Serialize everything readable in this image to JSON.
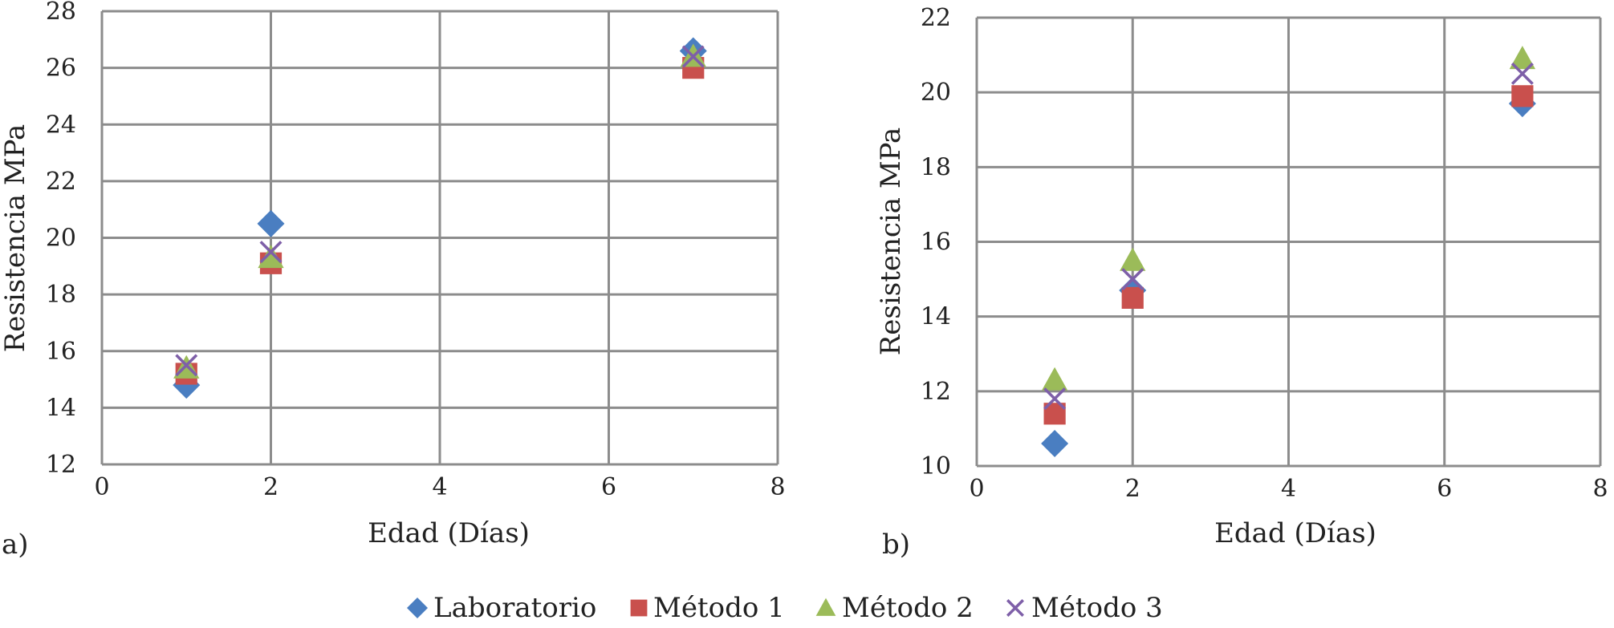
{
  "colors": {
    "grid": "#8c8c8c",
    "text": "#222222",
    "laboratorio": "#4a7ec1",
    "metodo1": "#c9504d",
    "metodo2": "#9bbb59",
    "metodo3": "#7e5fa8"
  },
  "legend": [
    {
      "name": "Laboratorio",
      "marker": "diamond",
      "color": "#4a7ec1"
    },
    {
      "name": "Método 1",
      "marker": "square",
      "color": "#c9504d"
    },
    {
      "name": "Método 2",
      "marker": "triangle",
      "color": "#9bbb59"
    },
    {
      "name": "Método 3",
      "marker": "cross",
      "color": "#7e5fa8"
    }
  ],
  "chart_data": [
    {
      "type": "scatter",
      "panel_label": "a)",
      "xlabel": "Edad (Días)",
      "ylabel": "Resistencia MPa",
      "xlim": [
        0,
        8
      ],
      "ylim": [
        12,
        28
      ],
      "xticks": [
        0,
        2,
        4,
        6,
        8
      ],
      "yticks": [
        12,
        14,
        16,
        18,
        20,
        22,
        24,
        26,
        28
      ],
      "grid": true,
      "legend_position": "bottom",
      "series": [
        {
          "name": "Laboratorio",
          "marker": "diamond",
          "x": [
            1,
            2,
            7
          ],
          "y": [
            14.8,
            20.5,
            26.6
          ]
        },
        {
          "name": "Método 1",
          "marker": "square",
          "x": [
            1,
            2,
            7
          ],
          "y": [
            15.2,
            19.1,
            26.0
          ]
        },
        {
          "name": "Método 2",
          "marker": "triangle",
          "x": [
            1,
            2,
            7
          ],
          "y": [
            15.4,
            19.3,
            26.4
          ]
        },
        {
          "name": "Método 3",
          "marker": "cross",
          "x": [
            1,
            2,
            7
          ],
          "y": [
            15.5,
            19.5,
            26.4
          ]
        }
      ]
    },
    {
      "type": "scatter",
      "panel_label": "b)",
      "xlabel": "Edad (Días)",
      "ylabel": "Resistencia MPa",
      "xlim": [
        0,
        8
      ],
      "ylim": [
        10,
        22
      ],
      "xticks": [
        0,
        2,
        4,
        6,
        8
      ],
      "yticks": [
        10,
        12,
        14,
        16,
        18,
        20,
        22
      ],
      "grid": true,
      "legend_position": "bottom",
      "series": [
        {
          "name": "Laboratorio",
          "marker": "diamond",
          "x": [
            1,
            2,
            7
          ],
          "y": [
            10.6,
            14.7,
            19.7
          ]
        },
        {
          "name": "Método 1",
          "marker": "square",
          "x": [
            1,
            2,
            7
          ],
          "y": [
            11.4,
            14.5,
            19.9
          ]
        },
        {
          "name": "Método 2",
          "marker": "triangle",
          "x": [
            1,
            2,
            7
          ],
          "y": [
            12.3,
            15.5,
            20.9
          ]
        },
        {
          "name": "Método 3",
          "marker": "cross",
          "x": [
            1,
            2,
            7
          ],
          "y": [
            11.8,
            15.0,
            20.5
          ]
        }
      ]
    }
  ]
}
